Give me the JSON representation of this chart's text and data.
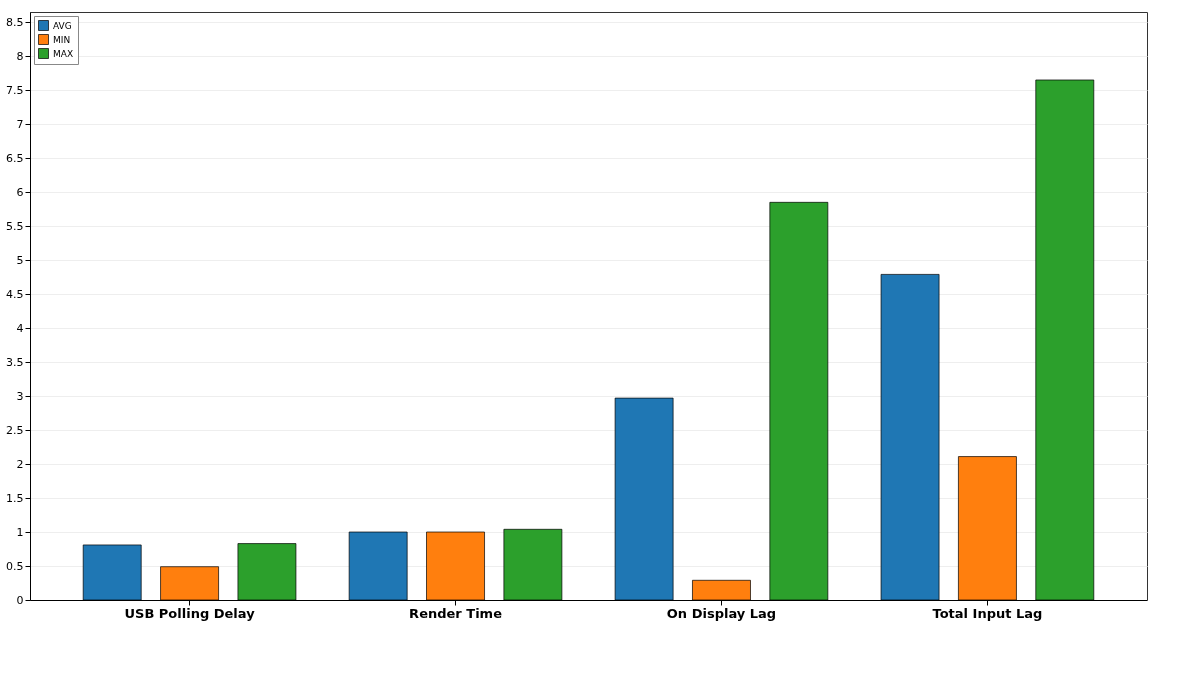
{
  "chart_data": {
    "type": "bar",
    "categories": [
      "USB Polling Delay",
      "Render Time",
      "On Display Lag",
      "Total Input Lag"
    ],
    "series": [
      {
        "name": "AVG",
        "color": "#1f77b4",
        "values": [
          0.81,
          1.0,
          2.97,
          4.79
        ]
      },
      {
        "name": "MIN",
        "color": "#ff7f0e",
        "values": [
          0.49,
          1.0,
          0.29,
          2.11
        ]
      },
      {
        "name": "MAX",
        "color": "#2ca02c",
        "values": [
          0.83,
          1.04,
          5.85,
          7.65
        ]
      }
    ],
    "ylim": [
      0,
      8.65
    ],
    "yticks": [
      0,
      0.5,
      1,
      1.5,
      2,
      2.5,
      3,
      3.5,
      4,
      4.5,
      5,
      5.5,
      6,
      6.5,
      7,
      7.5,
      8,
      8.5
    ],
    "grid": "y",
    "legend": "top left"
  }
}
